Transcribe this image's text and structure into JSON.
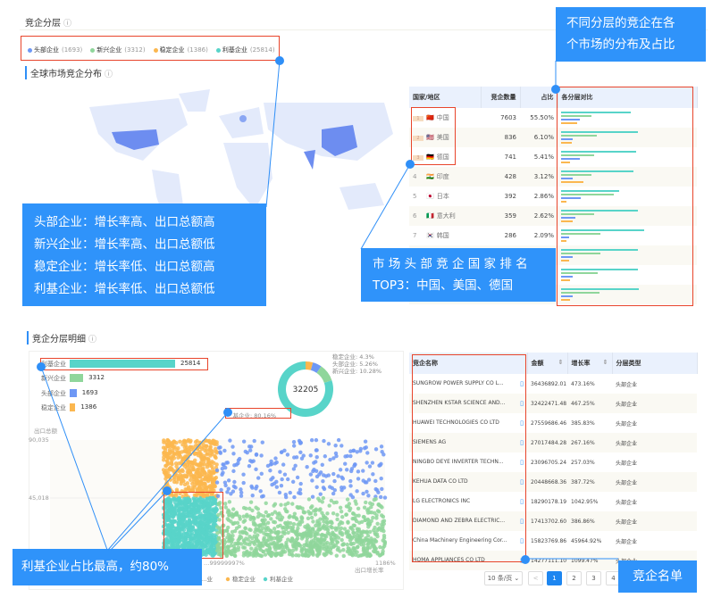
{
  "section_title": "竞企分层",
  "legend": [
    {
      "label": "头部企业",
      "count": "(1693)",
      "color": "#6e98f5"
    },
    {
      "label": "新兴企业",
      "count": "(3312)",
      "color": "#8fd69b"
    },
    {
      "label": "稳定企业",
      "count": "(1386)",
      "color": "#fbb74f"
    },
    {
      "label": "利基企业",
      "count": "(25814)",
      "color": "#58d4c9"
    }
  ],
  "map_title": "全球市场竞企分布",
  "callouts": {
    "tiers": [
      "头部企业：增长率高、出口总额高",
      "新兴企业：增长率高、出口总额低",
      "稳定企业：增长率低、出口总额高",
      "利基企业：增长率低、出口总额低"
    ],
    "distribution": [
      "不同分层的竞企在各",
      "个市场的分布及占比"
    ],
    "top3": [
      "市 场 头 部 竞 企 国 家 排 名",
      "TOP3：中国、美国、德国"
    ],
    "niche": "利基企业占比最高，约80%",
    "list": "竞企名单"
  },
  "country_table": {
    "headers": [
      "国家/地区",
      "竞企数量",
      "占比",
      "各分层对比"
    ],
    "rows": [
      {
        "rank": "1",
        "flag": "🇨🇳",
        "name": "中国",
        "count": "7603",
        "share": "55.50%",
        "bars": [
          0.53,
          0.23,
          0.14,
          0.12
        ]
      },
      {
        "rank": "2",
        "flag": "🇺🇸",
        "name": "美国",
        "count": "836",
        "share": "6.10%",
        "bars": [
          0.58,
          0.27,
          0.09,
          0.08
        ]
      },
      {
        "rank": "3",
        "flag": "🇩🇪",
        "name": "德国",
        "count": "741",
        "share": "5.41%",
        "bars": [
          0.57,
          0.25,
          0.14,
          0.07
        ]
      },
      {
        "rank": "4",
        "flag": "🇮🇳",
        "name": "印度",
        "count": "428",
        "share": "3.12%",
        "bars": [
          0.55,
          0.23,
          0.09,
          0.17
        ]
      },
      {
        "rank": "5",
        "flag": "🇯🇵",
        "name": "日本",
        "count": "392",
        "share": "2.86%",
        "bars": [
          0.44,
          0.4,
          0.15,
          0.04
        ]
      },
      {
        "rank": "6",
        "flag": "🇮🇹",
        "name": "意大利",
        "count": "359",
        "share": "2.62%",
        "bars": [
          0.58,
          0.25,
          0.11,
          0.09
        ]
      },
      {
        "rank": "7",
        "flag": "🇰🇷",
        "name": "韩国",
        "count": "286",
        "share": "2.09%",
        "bars": [
          0.63,
          0.3,
          0.06,
          0.04
        ]
      },
      {
        "bars": [
          0.58,
          0.3,
          0.09,
          0.06
        ]
      },
      {
        "bars": [
          0.58,
          0.28,
          0.09,
          0.07
        ]
      },
      {
        "bars": [
          0.59,
          0.29,
          0.09,
          0.07
        ]
      }
    ]
  },
  "detail_title": "竞企分层明细",
  "chart_data": [
    {
      "type": "bar",
      "categories": [
        "利基企业",
        "新兴企业",
        "头部企业",
        "稳定企业"
      ],
      "values": [
        25814,
        3312,
        1693,
        1386
      ],
      "colors": [
        "#58d4c9",
        "#8fd69b",
        "#6e98f5",
        "#fbb74f"
      ]
    },
    {
      "type": "pie",
      "total": "32205",
      "slices": [
        {
          "label": "稳定企业: 4.3%",
          "value": 4.3,
          "color": "#fbb74f"
        },
        {
          "label": "头部企业: 5.26%",
          "value": 5.26,
          "color": "#6e98f5"
        },
        {
          "label": "新兴企业: 10.28%",
          "value": 10.28,
          "color": "#8fd69b"
        },
        {
          "label": "利基企业: 80.16%",
          "value": 80.16,
          "color": "#58d4c9"
        }
      ]
    },
    {
      "type": "scatter",
      "ylabel": "出口总额",
      "xlabel": "出口增长率",
      "y_ticks": [
        "90,035",
        "45,018"
      ],
      "x_ticks": [
        "…99999997%",
        "1186%"
      ],
      "legend": [
        "…业",
        "稳定企业",
        "利基企业"
      ]
    }
  ],
  "company_table": {
    "headers": [
      "竞企名称",
      "金额",
      "增长率",
      "分层类型"
    ],
    "rows": [
      [
        "SUNGROW POWER SUPPLY CO L...",
        "36436892.01",
        "473.16%",
        "头部企业"
      ],
      [
        "SHENZHEN KSTAR SCIENCE AND...",
        "32422471.48",
        "467.25%",
        "头部企业"
      ],
      [
        "HUAWEI TECHNOLOGIES CO LTD",
        "27559686.46",
        "385.83%",
        "头部企业"
      ],
      [
        "SIEMENS AG",
        "27017484.28",
        "267.16%",
        "头部企业"
      ],
      [
        "NINGBO DEYE INVERTER TECHN...",
        "23096705.24",
        "257.03%",
        "头部企业"
      ],
      [
        "KEHUA DATA CO LTD",
        "20448668.36",
        "387.72%",
        "头部企业"
      ],
      [
        "LG ELECTRONICS INC",
        "18290178.19",
        "1042.95%",
        "头部企业"
      ],
      [
        "DIAMOND AND ZEBRA ELECTRIC...",
        "17413702.60",
        "386.86%",
        "头部企业"
      ],
      [
        "China Machinery Engineering Cor...",
        "15823769.86",
        "45964.92%",
        "头部企业"
      ],
      [
        "HOMA APPLIANCES CO LTD",
        "14277111.10",
        "1099.47%",
        "头部企业"
      ]
    ]
  },
  "pagination": {
    "page_size": "10 条/页",
    "prev": "<",
    "pages": [
      "1",
      "2",
      "3",
      "4"
    ],
    "current": "1"
  }
}
